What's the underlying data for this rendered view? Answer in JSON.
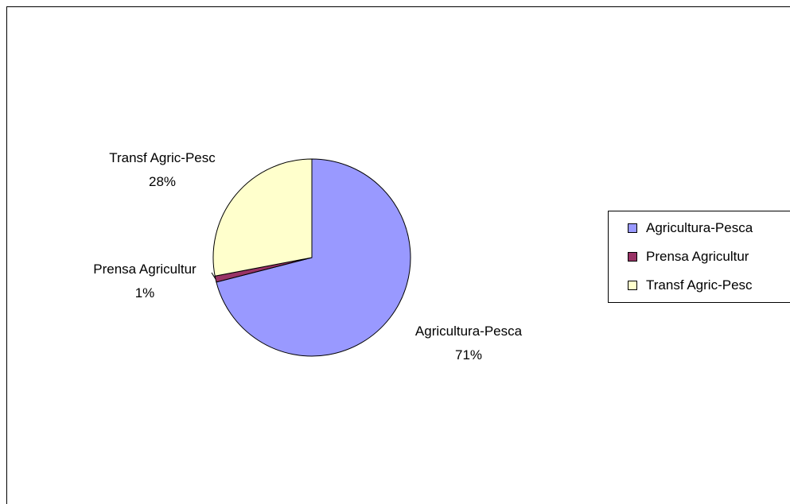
{
  "chart_data": {
    "type": "pie",
    "title": "",
    "slices": [
      {
        "name": "Agricultura-Pesca",
        "value": 71,
        "label": "71%",
        "color": "#9999FF"
      },
      {
        "name": "Prensa Agricultur",
        "value": 1,
        "label": "1%",
        "color": "#993366"
      },
      {
        "name": "Transf Agric-Pesc",
        "value": 28,
        "label": "28%",
        "color": "#FFFFCC"
      }
    ],
    "legend_position": "right"
  }
}
